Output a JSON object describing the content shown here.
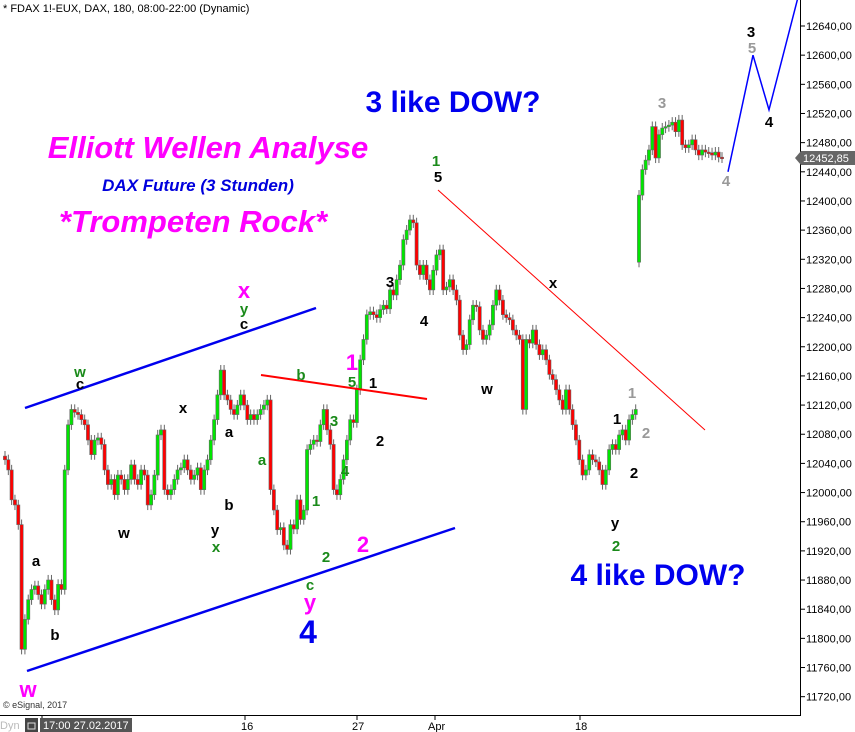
{
  "header": {
    "symbol_line": "* FDAX 1!-EUX, DAX, 180, 08:00-22:00 (Dynamic)"
  },
  "titles": {
    "main": "Elliott Wellen Analyse",
    "sub": "DAX Future (3 Stunden)",
    "tag": "*Trompeten Rock*",
    "dow3": "3 like DOW?",
    "dow4": "4 like DOW?"
  },
  "footer": {
    "copyright": "© eSignal, 2017",
    "dyn_label": "Dyn",
    "start_date": "17:00 27.02.2017"
  },
  "last_price": {
    "label": "12452,85",
    "value": 12452.85,
    "color": "#666666"
  },
  "colors": {
    "up": "#00e600",
    "down": "#ff0000",
    "outline": "#666666",
    "channel": "#0000ee",
    "trend": "#ff0000",
    "projection": "#0000ff"
  },
  "chart_data": {
    "type": "candlestick",
    "title": "",
    "ylim": [
      11700,
      12690
    ],
    "yticks": [
      12640,
      12600,
      12560,
      12520,
      12480,
      12440,
      12400,
      12360,
      12320,
      12280,
      12240,
      12200,
      12160,
      12120,
      12080,
      12040,
      12000,
      11960,
      11920,
      11880,
      11840,
      11800,
      11760,
      11720
    ],
    "ytick_labels": [
      "12640,00",
      "12600,00",
      "12560,00",
      "12520,00",
      "12480,00",
      "12440,00",
      "12400,00",
      "12360,00",
      "12320,00",
      "12280,00",
      "12240,00",
      "12200,00",
      "12160,00",
      "12120,00",
      "12080,00",
      "12040,00",
      "12000,00",
      "11960,00",
      "11920,00",
      "11880,00",
      "11840,00",
      "11800,00",
      "11760,00",
      "11720,00"
    ],
    "xtick_labels": [
      "16",
      "27",
      "Apr",
      "18"
    ],
    "segments": [
      {
        "open": 12050,
        "closes": [
          12045,
          12031,
          11990,
          11983,
          11956,
          11785,
          11826,
          11853,
          11867,
          11872,
          11860,
          11847,
          11867,
          11880,
          11853,
          11839,
          11874,
          11867,
          12031,
          12093,
          12114,
          12110,
          12107,
          12100,
          12093,
          12072,
          12052,
          12072,
          12075,
          12066,
          12031,
          12011,
          12018,
          11997,
          12024,
          12018,
          12004,
          12018,
          12038,
          12018,
          12011,
          12031,
          12024,
          11983,
          11997,
          12024,
          12079,
          12086,
          12004,
          11997,
          12004,
          12018,
          12031,
          12034,
          12045,
          12031,
          12018,
          12024,
          12034,
          12004,
          12031,
          12045,
          12072,
          12100,
          12134,
          12168,
          12134,
          12127,
          12114,
          12107,
          12120,
          12134,
          12120,
          12100,
          12107,
          12100,
          12107,
          12114,
          12120,
          12127,
          12004,
          11976,
          11949,
          11952,
          11928,
          11922,
          11956,
          11950,
          11990,
          11963,
          11976,
          12059,
          12066,
          12072,
          12070,
          12093,
          12114,
          12086,
          12066,
          12004,
          11997,
          12018,
          12045,
          12072,
          12100,
          12096,
          12141,
          12182,
          12210,
          12244,
          12248,
          12244,
          12240,
          12251,
          12257,
          12252,
          12278,
          12271,
          12292,
          12312,
          12347,
          12360,
          12374,
          12370,
          12312,
          12299,
          12312,
          12292,
          12278,
          12305,
          12326,
          12333,
          12278,
          12282,
          12292,
          12278,
          12264,
          12216,
          12196,
          12203,
          12237,
          12257,
          12255,
          12223,
          12210,
          12216,
          12230,
          12257,
          12278,
          12264,
          12244,
          12240,
          12237,
          12223,
          12216,
          12210,
          12114,
          12210,
          12205,
          12223,
          12203,
          12189,
          12196,
          12182,
          12162,
          12155,
          12141,
          12127,
          12114,
          12141,
          12114,
          12093,
          12072,
          12045,
          12024,
          12031,
          12052,
          12045,
          12042,
          12031,
          12011,
          12031,
          12059,
          12066,
          12059,
          12079,
          12086,
          12072,
          12100,
          12107,
          12114
        ]
      },
      {
        "open": 12316,
        "closes": [
          12408,
          12443,
          12456,
          12470,
          12502,
          12459,
          12491,
          12500,
          12502,
          12504,
          12508,
          12495,
          12511,
          12477,
          12473,
          12477,
          12484,
          12470,
          12463,
          12470,
          12467,
          12466,
          12463,
          12467,
          12460,
          12459
        ]
      }
    ],
    "projection": [
      12440,
      12600,
      12525,
      12690
    ]
  },
  "annotations": [
    {
      "text": "w",
      "color": "#1a8a1a"
    },
    {
      "text": "c",
      "color": "#000000"
    },
    {
      "text": "x",
      "color": "#000000"
    },
    {
      "text": "a",
      "color": "#000000"
    },
    {
      "text": "b",
      "color": "#000000"
    },
    {
      "text": "w",
      "color": "#000000"
    },
    {
      "text": "y",
      "color": "#000000"
    },
    {
      "text": "x",
      "color": "#1a8a1a"
    },
    {
      "text": "a",
      "color": "#000000"
    },
    {
      "text": "b",
      "color": "#000000"
    },
    {
      "text": "a",
      "color": "#1a8a1a"
    },
    {
      "text": "x",
      "color": "#ff00ff"
    },
    {
      "text": "y",
      "color": "#1a8a1a"
    },
    {
      "text": "c",
      "color": "#000000"
    },
    {
      "text": "b",
      "color": "#1a8a1a"
    },
    {
      "text": "1",
      "color": "#ff00ff"
    },
    {
      "text": "5",
      "color": "#1a8a1a"
    },
    {
      "text": "1",
      "color": "#000000"
    },
    {
      "text": "3",
      "color": "#1a8a1a"
    },
    {
      "text": "4",
      "color": "#1a8a1a"
    },
    {
      "text": "2",
      "color": "#000000"
    },
    {
      "text": "1",
      "color": "#1a8a1a"
    },
    {
      "text": "2",
      "color": "#1a8a1a"
    },
    {
      "text": "2",
      "color": "#ff00ff"
    },
    {
      "text": "c",
      "color": "#1a8a1a"
    },
    {
      "text": "y",
      "color": "#ff00ff"
    },
    {
      "text": "4",
      "color": "#0000ee"
    },
    {
      "text": "3",
      "color": "#000000"
    },
    {
      "text": "4",
      "color": "#000000"
    },
    {
      "text": "1",
      "color": "#1a8a1a"
    },
    {
      "text": "5",
      "color": "#000000"
    },
    {
      "text": "w",
      "color": "#000000"
    },
    {
      "text": "x",
      "color": "#000000"
    },
    {
      "text": "1",
      "color": "#000000"
    },
    {
      "text": "2",
      "color": "#000000"
    },
    {
      "text": "y",
      "color": "#000000"
    },
    {
      "text": "2",
      "color": "#1a8a1a"
    },
    {
      "text": "1",
      "color": "#999999"
    },
    {
      "text": "2",
      "color": "#999999"
    },
    {
      "text": "3",
      "color": "#999999"
    },
    {
      "text": "4",
      "color": "#999999"
    },
    {
      "text": "3",
      "color": "#000000"
    },
    {
      "text": "5",
      "color": "#999999"
    },
    {
      "text": "4",
      "color": "#000000"
    },
    {
      "text": "w",
      "color": "#ff00ff"
    }
  ]
}
